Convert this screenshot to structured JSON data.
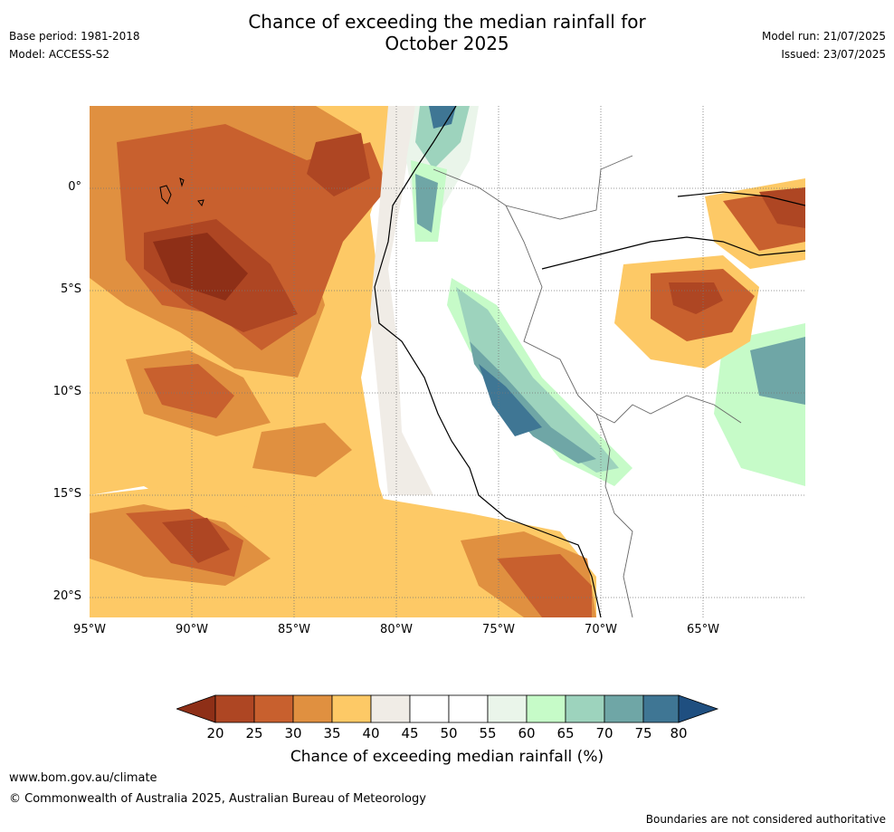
{
  "header": {
    "title_line1": "Chance of exceeding the median rainfall for",
    "title_line2": "October 2025",
    "base_period": "Base period: 1981-2018",
    "model": "Model: ACCESS-S2",
    "model_run": "Model run: 21/07/2025",
    "issued": "Issued: 23/07/2025"
  },
  "map": {
    "lat_labels": [
      "0°",
      "5°S",
      "10°S",
      "15°S",
      "20°S"
    ],
    "lon_labels": [
      "95°W",
      "90°W",
      "85°W",
      "80°W",
      "75°W",
      "70°W",
      "65°W"
    ],
    "colors": {
      "c15": "#8e2f17",
      "c20": "#ae4623",
      "c25": "#c8602e",
      "c30": "#e09040",
      "c35": "#fdc966",
      "c40": "#f0ece6",
      "c45": "#ffffff",
      "c55": "#eaf5ea",
      "c60": "#c6fbc8",
      "c65": "#9dd3bd",
      "c70": "#6fa6a6",
      "c75": "#3f7694",
      "c80": "#1f4f80"
    }
  },
  "colorbar": {
    "ticks": [
      "20",
      "25",
      "30",
      "35",
      "40",
      "45",
      "50",
      "55",
      "60",
      "65",
      "70",
      "75",
      "80"
    ],
    "label": "Chance of exceeding median rainfall (%)"
  },
  "footer": {
    "website": "www.bom.gov.au/climate",
    "copyright": "© Commonwealth of Australia 2025, Australian Bureau of Meteorology",
    "disclaimer": "Boundaries are not considered authoritative"
  }
}
